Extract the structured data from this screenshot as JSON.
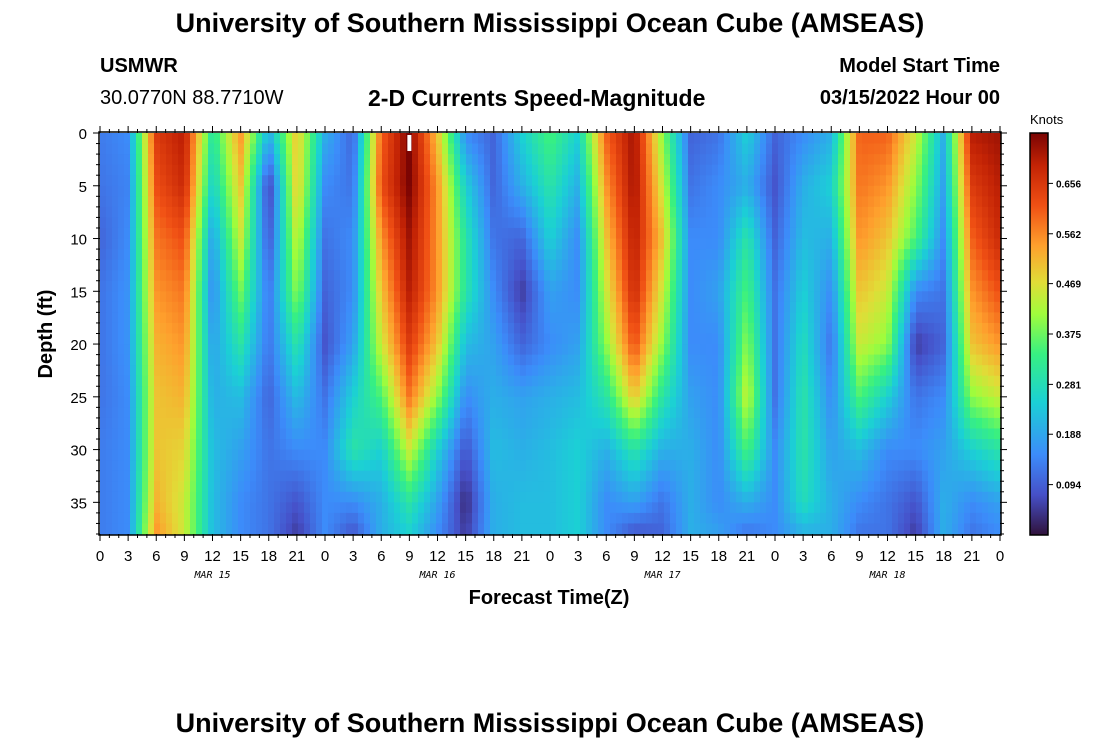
{
  "header": {
    "title": "University of Southern Mississippi Ocean Cube (AMSEAS)",
    "station": "USMWR",
    "coords": "30.0770N  88.7710W",
    "plot_title": "2-D Currents Speed-Magnitude",
    "model_label": "Model Start Time",
    "model_time": "03/15/2022 Hour 00"
  },
  "footer": {
    "title": "University of Southern Mississippi Ocean Cube (AMSEAS)"
  },
  "chart_data": {
    "type": "heatmap",
    "title": "2-D Currents Speed-Magnitude",
    "xlabel": "Forecast Time(Z)",
    "ylabel": "Depth (ft)",
    "x_range_hours": [
      0,
      96
    ],
    "ylim": [
      0,
      38
    ],
    "x_tick_labels": [
      "0",
      "3",
      "6",
      "9",
      "12",
      "15",
      "18",
      "21",
      "0",
      "3",
      "6",
      "9",
      "12",
      "15",
      "18",
      "21",
      "0",
      "3",
      "6",
      "9",
      "12",
      "15",
      "18",
      "21",
      "0",
      "3",
      "6",
      "9",
      "12",
      "15",
      "18",
      "21",
      "0"
    ],
    "date_labels": [
      {
        "label": "MAR 15",
        "hour": 12
      },
      {
        "label": "MAR 16",
        "hour": 36
      },
      {
        "label": "MAR 17",
        "hour": 60
      },
      {
        "label": "MAR 18",
        "hour": 84
      }
    ],
    "y_ticks": [
      0,
      5,
      10,
      15,
      20,
      25,
      30,
      35
    ],
    "colorbar": {
      "label": "Knots",
      "range": [
        0.0,
        0.75
      ],
      "tick_values": [
        0.656,
        0.562,
        0.469,
        0.375,
        0.281,
        0.188,
        0.094
      ],
      "tick_labels": [
        "0.656",
        "0.562",
        "0.469",
        "0.375",
        "0.281",
        "0.188",
        "0.094"
      ]
    },
    "depths_ft": [
      0,
      5,
      10,
      15,
      20,
      25,
      30,
      35,
      38
    ],
    "time_hours": [
      0,
      3,
      6,
      9,
      12,
      15,
      18,
      21,
      24,
      27,
      30,
      33,
      36,
      39,
      42,
      45,
      48,
      51,
      54,
      57,
      60,
      63,
      66,
      69,
      72,
      75,
      78,
      81,
      84,
      87,
      90,
      93,
      96
    ],
    "speed_knots": [
      [
        0.13,
        0.15,
        0.65,
        0.7,
        0.3,
        0.55,
        0.2,
        0.5,
        0.2,
        0.1,
        0.6,
        0.75,
        0.5,
        0.15,
        0.1,
        0.25,
        0.35,
        0.25,
        0.6,
        0.72,
        0.4,
        0.1,
        0.12,
        0.25,
        0.1,
        0.15,
        0.2,
        0.6,
        0.6,
        0.45,
        0.2,
        0.7,
        0.72
      ],
      [
        0.12,
        0.14,
        0.62,
        0.68,
        0.25,
        0.5,
        0.05,
        0.5,
        0.15,
        0.12,
        0.62,
        0.75,
        0.55,
        0.25,
        0.1,
        0.2,
        0.3,
        0.2,
        0.55,
        0.72,
        0.45,
        0.12,
        0.15,
        0.2,
        0.08,
        0.2,
        0.25,
        0.58,
        0.55,
        0.4,
        0.18,
        0.65,
        0.7
      ],
      [
        0.1,
        0.15,
        0.58,
        0.62,
        0.18,
        0.45,
        0.08,
        0.45,
        0.12,
        0.15,
        0.55,
        0.72,
        0.55,
        0.3,
        0.12,
        0.1,
        0.25,
        0.15,
        0.5,
        0.7,
        0.5,
        0.15,
        0.15,
        0.3,
        0.1,
        0.22,
        0.2,
        0.55,
        0.5,
        0.35,
        0.15,
        0.6,
        0.68
      ],
      [
        0.12,
        0.16,
        0.55,
        0.58,
        0.15,
        0.38,
        0.12,
        0.4,
        0.1,
        0.15,
        0.5,
        0.7,
        0.55,
        0.3,
        0.15,
        0.05,
        0.18,
        0.15,
        0.45,
        0.68,
        0.45,
        0.15,
        0.18,
        0.35,
        0.12,
        0.25,
        0.15,
        0.5,
        0.45,
        0.15,
        0.12,
        0.55,
        0.62
      ],
      [
        0.12,
        0.16,
        0.52,
        0.55,
        0.18,
        0.3,
        0.12,
        0.3,
        0.08,
        0.18,
        0.45,
        0.65,
        0.5,
        0.22,
        0.18,
        0.1,
        0.15,
        0.18,
        0.4,
        0.62,
        0.4,
        0.15,
        0.15,
        0.4,
        0.12,
        0.28,
        0.12,
        0.45,
        0.4,
        0.05,
        0.1,
        0.5,
        0.55
      ],
      [
        0.12,
        0.15,
        0.5,
        0.52,
        0.2,
        0.22,
        0.1,
        0.22,
        0.12,
        0.25,
        0.35,
        0.58,
        0.4,
        0.15,
        0.2,
        0.18,
        0.2,
        0.22,
        0.3,
        0.5,
        0.3,
        0.18,
        0.15,
        0.45,
        0.12,
        0.3,
        0.15,
        0.35,
        0.25,
        0.12,
        0.15,
        0.4,
        0.45
      ],
      [
        0.13,
        0.15,
        0.5,
        0.48,
        0.22,
        0.18,
        0.12,
        0.15,
        0.15,
        0.3,
        0.25,
        0.45,
        0.25,
        0.08,
        0.22,
        0.2,
        0.22,
        0.25,
        0.2,
        0.3,
        0.2,
        0.2,
        0.15,
        0.35,
        0.15,
        0.3,
        0.18,
        0.22,
        0.15,
        0.15,
        0.18,
        0.25,
        0.3
      ],
      [
        0.13,
        0.15,
        0.52,
        0.45,
        0.22,
        0.15,
        0.12,
        0.08,
        0.15,
        0.15,
        0.2,
        0.3,
        0.18,
        0.03,
        0.2,
        0.22,
        0.22,
        0.25,
        0.15,
        0.18,
        0.12,
        0.2,
        0.15,
        0.2,
        0.15,
        0.28,
        0.2,
        0.15,
        0.12,
        0.08,
        0.2,
        0.15,
        0.18
      ],
      [
        0.13,
        0.15,
        0.55,
        0.45,
        0.22,
        0.15,
        0.12,
        0.05,
        0.15,
        0.08,
        0.2,
        0.25,
        0.15,
        0.05,
        0.2,
        0.22,
        0.22,
        0.25,
        0.15,
        0.08,
        0.1,
        0.2,
        0.18,
        0.12,
        0.15,
        0.2,
        0.2,
        0.12,
        0.12,
        0.05,
        0.2,
        0.12,
        0.15
      ]
    ]
  }
}
